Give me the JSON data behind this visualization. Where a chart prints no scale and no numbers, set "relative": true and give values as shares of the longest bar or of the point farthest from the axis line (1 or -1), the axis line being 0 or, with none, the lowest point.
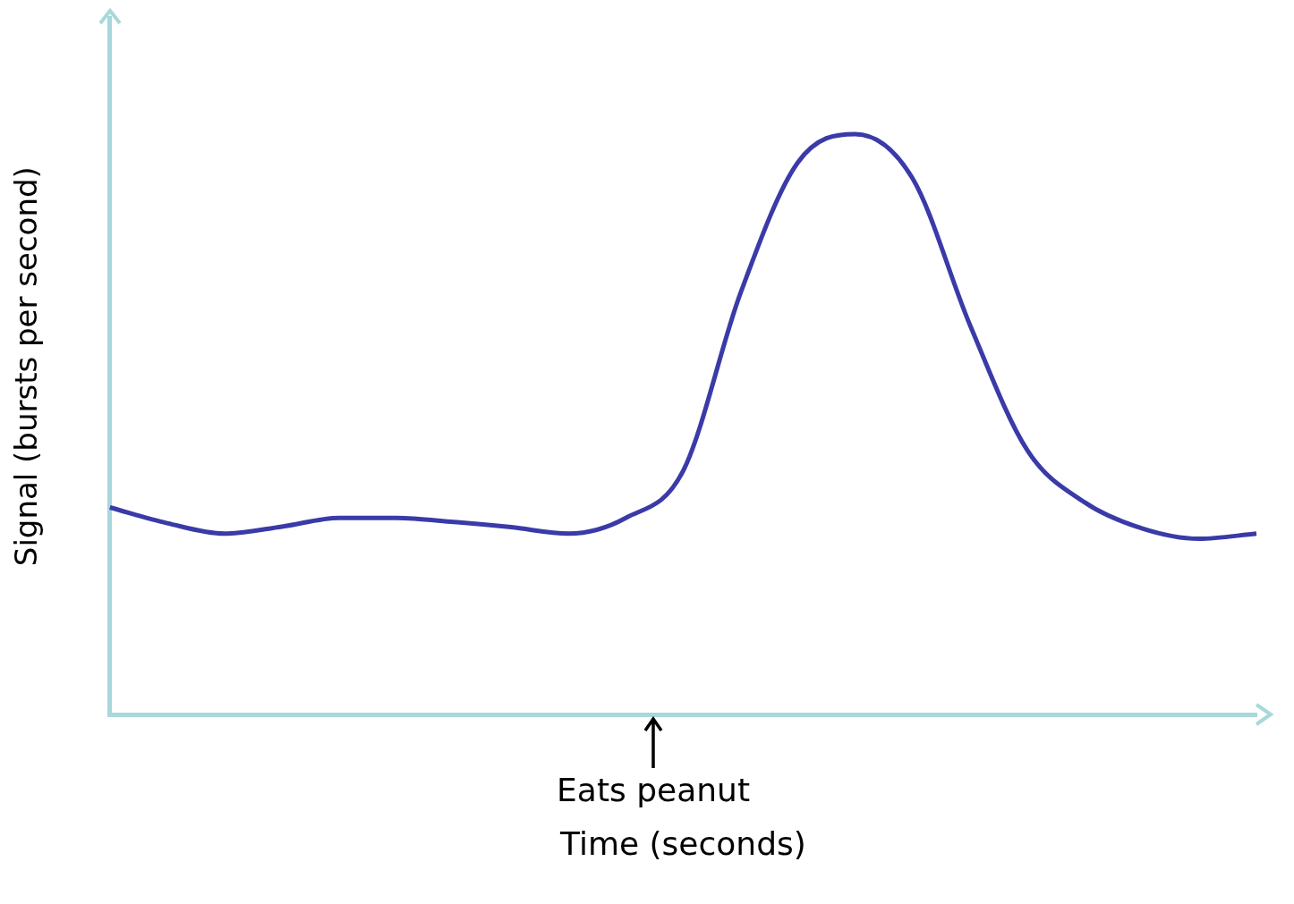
{
  "chart_data": {
    "type": "line",
    "relative": true,
    "xlabel": "Time (seconds)",
    "ylabel": "Signal (bursts per second)",
    "annotations": [
      "Eats peanut"
    ],
    "grid": false,
    "legend": false,
    "marker": "none",
    "line_style": "solid",
    "categories": [
      null,
      null,
      null,
      null,
      null,
      null,
      null,
      null,
      null,
      null,
      null,
      null,
      null,
      null,
      null,
      null,
      null,
      null,
      null,
      null,
      null
    ],
    "series": [
      {
        "color": "#3a3aa8",
        "values": [
          0.357,
          0.33,
          0.312,
          0.324,
          0.339,
          0.339,
          0.332,
          0.323,
          0.312,
          0.339,
          0.42,
          0.726,
          0.951,
          1.0,
          0.924,
          0.672,
          0.456,
          0.366,
          0.321,
          0.303,
          0.312
        ]
      }
    ]
  }
}
